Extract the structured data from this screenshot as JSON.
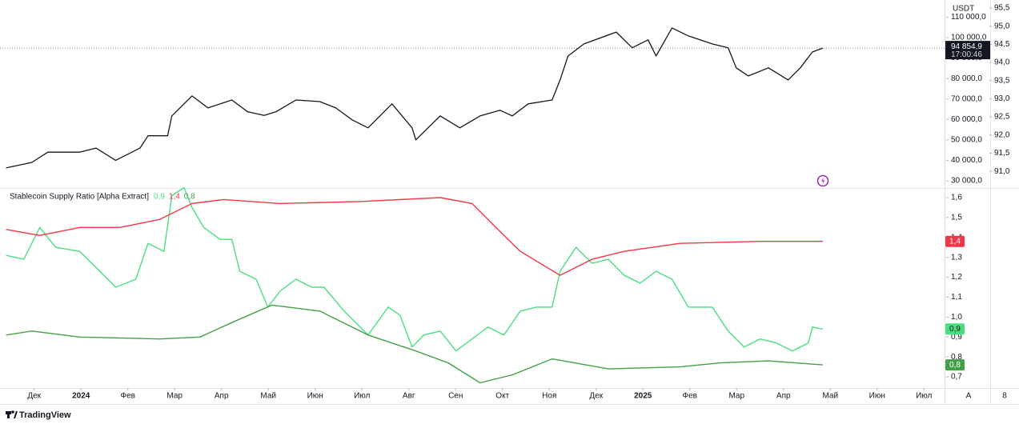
{
  "chart_data": [
    {
      "type": "line",
      "currency": "USDT",
      "countdown": "17:00:46",
      "xlim": [
        -0.73,
        19.44
      ],
      "xticks": [
        {
          "value": 0,
          "label": "Дек"
        },
        {
          "value": 1,
          "label": "2024"
        },
        {
          "value": 2,
          "label": "Фев"
        },
        {
          "value": 3,
          "label": "Мар"
        },
        {
          "value": 4,
          "label": "Апр"
        },
        {
          "value": 5,
          "label": "Май"
        },
        {
          "value": 6,
          "label": "Июн"
        },
        {
          "value": 7,
          "label": "Июл"
        },
        {
          "value": 8,
          "label": "Авг"
        },
        {
          "value": 9,
          "label": "Сен"
        },
        {
          "value": 10,
          "label": "Окт"
        },
        {
          "value": 11,
          "label": "Ноя"
        },
        {
          "value": 12,
          "label": "Дек"
        },
        {
          "value": 13,
          "label": "2025"
        },
        {
          "value": 14,
          "label": "Фев"
        },
        {
          "value": 15,
          "label": "Мар"
        },
        {
          "value": 16,
          "label": "Апр"
        },
        {
          "value": 17,
          "label": "Май"
        },
        {
          "value": 18,
          "label": "Июн"
        },
        {
          "value": 19,
          "label": "Июл"
        }
      ],
      "ylim": [
        26480,
        118360
      ],
      "yticks": [
        {
          "value": 30000,
          "label": "30 000,0"
        },
        {
          "value": 40000,
          "label": "40 000,0"
        },
        {
          "value": 50000,
          "label": "50 000,0"
        },
        {
          "value": 60000,
          "label": "60 000,0"
        },
        {
          "value": 70000,
          "label": "70 000,0"
        },
        {
          "value": 80000,
          "label": "80 000,0"
        },
        {
          "value": 90000,
          "label": "90 000,0"
        },
        {
          "value": 100000,
          "label": "100 000,0"
        },
        {
          "value": 110000,
          "label": "110 000,0"
        }
      ],
      "y2lim": [
        90.54,
        95.72
      ],
      "y2ticks": [
        {
          "value": 91.0,
          "label": "91,0"
        },
        {
          "value": 91.5,
          "label": "91,5"
        },
        {
          "value": 92.0,
          "label": "92,0"
        },
        {
          "value": 92.5,
          "label": "92,5"
        },
        {
          "value": 93.0,
          "label": "93,0"
        },
        {
          "value": 93.5,
          "label": "93,5"
        },
        {
          "value": 94.0,
          "label": "94,0"
        },
        {
          "value": 94.5,
          "label": "94,5"
        },
        {
          "value": 95.0,
          "label": "95,0"
        },
        {
          "value": 95.5,
          "label": "95,5"
        }
      ],
      "grid": false,
      "series": [
        {
          "color": "#131722",
          "x": [
            -0.6,
            -0.05,
            0.29,
            0.97,
            1.32,
            1.74,
            2.26,
            2.43,
            2.85,
            2.94,
            3.37,
            3.71,
            4.22,
            4.56,
            4.91,
            5.16,
            5.59,
            6.1,
            6.44,
            6.79,
            7.13,
            7.64,
            8.07,
            8.15,
            8.67,
            9.09,
            9.52,
            9.95,
            10.21,
            10.55,
            11.06,
            11.23,
            11.4,
            11.74,
            12.43,
            12.77,
            13.11,
            13.28,
            13.62,
            13.97,
            14.48,
            14.82,
            14.99,
            15.25,
            15.68,
            16.1,
            16.36,
            16.62,
            16.84
          ],
          "values": [
            36300,
            39000,
            44000,
            44000,
            46000,
            40000,
            46000,
            52000,
            52000,
            61700,
            71500,
            65600,
            69500,
            63700,
            62000,
            63700,
            69500,
            68700,
            65600,
            59800,
            55900,
            67600,
            55900,
            50000,
            61700,
            55900,
            61700,
            64500,
            61700,
            67600,
            69500,
            79300,
            91000,
            96900,
            102700,
            95000,
            98900,
            91000,
            104700,
            100800,
            96900,
            95000,
            85200,
            81250,
            85200,
            79300,
            85200,
            93000,
            94854.9
          ],
          "value_label": "94 854,9"
        }
      ]
    },
    {
      "type": "line",
      "title": "Stablecoin Supply Ratio [Alpha Extract]",
      "ylim": [
        0.644,
        1.648
      ],
      "yticks": [
        {
          "value": 0.7,
          "label": "0,7"
        },
        {
          "value": 0.8,
          "label": "0,8"
        },
        {
          "value": 0.9,
          "label": "0,9"
        },
        {
          "value": 1.0,
          "label": "1,0"
        },
        {
          "value": 1.1,
          "label": "1,1"
        },
        {
          "value": 1.2,
          "label": "1,2"
        },
        {
          "value": 1.3,
          "label": "1,3"
        },
        {
          "value": 1.4,
          "label": "1,4"
        },
        {
          "value": 1.5,
          "label": "1,5"
        },
        {
          "value": 1.6,
          "label": "1,6"
        }
      ],
      "series": [
        {
          "color": "#4ade80",
          "badge_text": "#131722",
          "x": [
            -0.6,
            -0.22,
            0.12,
            0.46,
            0.97,
            1.49,
            1.74,
            2.17,
            2.43,
            2.77,
            2.94,
            3.2,
            3.37,
            3.62,
            3.97,
            4.22,
            4.39,
            4.74,
            4.99,
            5.25,
            5.59,
            5.93,
            6.19,
            6.62,
            7.13,
            7.56,
            7.81,
            8.07,
            8.32,
            8.67,
            9.01,
            9.35,
            9.69,
            10.03,
            10.38,
            10.72,
            11.06,
            11.23,
            11.4,
            11.57,
            11.91,
            12.26,
            12.6,
            12.94,
            13.28,
            13.62,
            13.97,
            14.48,
            14.82,
            15.16,
            15.5,
            15.85,
            16.19,
            16.53,
            16.62,
            16.84
          ],
          "values": [
            1.31,
            1.29,
            1.45,
            1.35,
            1.33,
            1.21,
            1.15,
            1.19,
            1.37,
            1.33,
            1.61,
            1.65,
            1.55,
            1.45,
            1.39,
            1.39,
            1.23,
            1.19,
            1.05,
            1.13,
            1.19,
            1.15,
            1.15,
            1.03,
            0.91,
            1.05,
            1.01,
            0.85,
            0.91,
            0.93,
            0.83,
            0.89,
            0.95,
            0.91,
            1.03,
            1.05,
            1.05,
            1.23,
            1.29,
            1.35,
            1.27,
            1.29,
            1.21,
            1.17,
            1.23,
            1.19,
            1.05,
            1.05,
            0.93,
            0.85,
            0.89,
            0.87,
            0.83,
            0.87,
            0.95,
            0.94
          ],
          "last_label": "0,9"
        },
        {
          "color": "#f23645",
          "badge_text": "#ffffff",
          "x": [
            -0.6,
            0.12,
            0.97,
            1.83,
            2.68,
            3.37,
            4.05,
            5.25,
            6.96,
            8.67,
            9.35,
            9.86,
            10.38,
            11.23,
            11.91,
            12.6,
            13.79,
            15.5,
            16.84
          ],
          "values": [
            1.44,
            1.41,
            1.45,
            1.45,
            1.49,
            1.57,
            1.59,
            1.57,
            1.58,
            1.6,
            1.57,
            1.45,
            1.33,
            1.21,
            1.29,
            1.33,
            1.37,
            1.38,
            1.38
          ],
          "last_label": "1,4"
        },
        {
          "color": "#43a047",
          "badge_text": "#ffffff",
          "x": [
            -0.6,
            -0.05,
            0.97,
            2.68,
            3.54,
            4.39,
            5.08,
            6.1,
            7.13,
            8.15,
            8.84,
            9.52,
            10.21,
            11.06,
            12.26,
            13.79,
            14.65,
            15.68,
            16.84
          ],
          "values": [
            0.91,
            0.93,
            0.9,
            0.89,
            0.9,
            0.99,
            1.06,
            1.03,
            0.91,
            0.83,
            0.77,
            0.67,
            0.71,
            0.79,
            0.74,
            0.75,
            0.77,
            0.78,
            0.76
          ],
          "last_label": "0,8"
        }
      ]
    }
  ],
  "ui": {
    "scale_mode": "A",
    "settings": "8",
    "brand": "TradingView"
  }
}
